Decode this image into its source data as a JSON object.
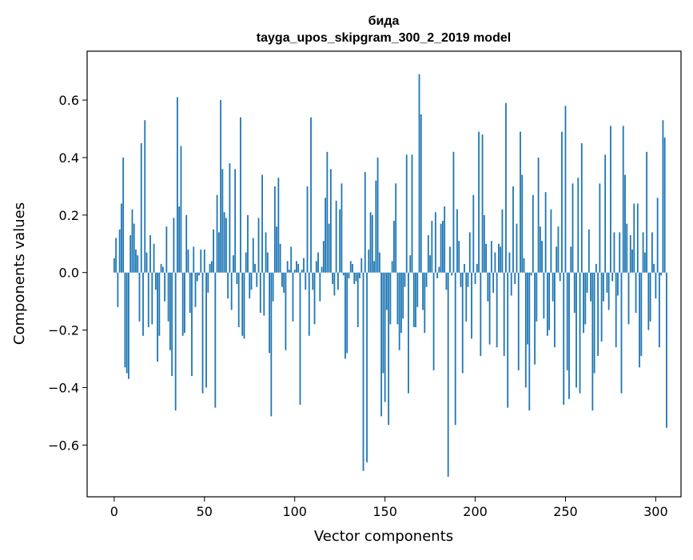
{
  "chart_data": {
    "type": "bar",
    "title": "бида",
    "subtitle": "tayga_upos_skipgram_300_2_2019 model",
    "xlabel": "Vector components",
    "ylabel": "Components values",
    "xlim": [
      -15,
      314
    ],
    "ylim": [
      -0.78,
      0.77
    ],
    "x_ticks": [
      0,
      50,
      100,
      150,
      200,
      250,
      300
    ],
    "y_ticks": [
      -0.6,
      -0.4,
      -0.2,
      0.0,
      0.2,
      0.4,
      0.6
    ],
    "y_tick_labels": [
      "−0.6",
      "−0.4",
      "−0.2",
      "0.0",
      "0.2",
      "0.4",
      "0.6"
    ],
    "bar_color": "#1f77b4",
    "grid": false,
    "values": [
      0.05,
      0.12,
      -0.12,
      0.15,
      0.24,
      0.4,
      -0.33,
      -0.35,
      -0.37,
      0.13,
      0.22,
      0.17,
      0.08,
      0.06,
      -0.17,
      0.45,
      -0.22,
      0.53,
      0.07,
      -0.19,
      0.13,
      -0.18,
      0.1,
      -0.06,
      -0.31,
      -0.22,
      0.03,
      0.02,
      -0.1,
      0.16,
      -0.17,
      -0.27,
      -0.36,
      0.19,
      -0.48,
      0.61,
      0.23,
      0.44,
      -0.22,
      -0.21,
      0.2,
      0.08,
      -0.14,
      -0.36,
      0.09,
      -0.12,
      -0.03,
      -0.01,
      0.08,
      -0.42,
      0.08,
      -0.4,
      -0.07,
      0.03,
      0.04,
      0.15,
      -0.47,
      0.27,
      0.14,
      0.6,
      0.36,
      0.21,
      0.19,
      -0.09,
      0.38,
      -0.13,
      0.06,
      0.36,
      -0.04,
      -0.19,
      0.54,
      -0.22,
      -0.23,
      0.07,
      0.2,
      -0.09,
      -0.06,
      0.12,
      0.03,
      -0.05,
      0.19,
      -0.14,
      0.34,
      -0.15,
      0.14,
      0.07,
      -0.28,
      -0.5,
      -0.1,
      0.3,
      0.16,
      0.33,
      0.1,
      -0.05,
      -0.07,
      -0.27,
      0.04,
      0.01,
      0.09,
      -0.17,
      0.01,
      0.04,
      0.03,
      -0.46,
      0.01,
      0.05,
      -0.06,
      0.3,
      -0.22,
      0.54,
      -0.06,
      -0.18,
      0.04,
      0.07,
      -0.1,
      0.02,
      0.11,
      0.26,
      0.42,
      0.17,
      0.36,
      -0.04,
      -0.08,
      0.25,
      -0.06,
      0.22,
      0.31,
      -0.01,
      -0.3,
      -0.28,
      -0.02,
      0.04,
      0.03,
      -0.04,
      -0.03,
      -0.19,
      -0.02,
      0.05,
      -0.69,
      0.35,
      -0.66,
      0.08,
      0.21,
      0.2,
      0.04,
      0.32,
      0.4,
      0.07,
      -0.5,
      -0.35,
      -0.45,
      -0.13,
      -0.53,
      -0.18,
      0.04,
      0.18,
      0.31,
      -0.18,
      -0.27,
      -0.21,
      -0.16,
      -0.05,
      0.41,
      -0.42,
      0.06,
      0.41,
      -0.19,
      -0.19,
      -0.12,
      0.69,
      0.55,
      -0.13,
      -0.21,
      -0.05,
      0.13,
      0.06,
      0.18,
      -0.34,
      0.21,
      -0.02,
      0.02,
      0.17,
      0.18,
      0.23,
      -0.06,
      -0.71,
      0.09,
      -0.01,
      0.42,
      -0.53,
      0.22,
      0.11,
      -0.05,
      -0.35,
      0.03,
      -0.17,
      -0.05,
      0.14,
      -0.23,
      0.27,
      -0.04,
      0.03,
      0.49,
      -0.29,
      0.48,
      0.2,
      0.1,
      -0.1,
      -0.25,
      0.11,
      -0.07,
      0.07,
      -0.26,
      0.1,
      0.09,
      0.22,
      -0.29,
      0.59,
      -0.47,
      0.07,
      -0.08,
      0.3,
      -0.04,
      0.17,
      -0.34,
      0.49,
      0.34,
      0.05,
      -0.4,
      -0.25,
      -0.48,
      -0.01,
      0.27,
      -0.32,
      -0.17,
      0.4,
      0.16,
      0.11,
      -0.16,
      0.28,
      -0.22,
      -0.2,
      0.22,
      -0.1,
      -0.26,
      0.09,
      0.16,
      -0.03,
      0.49,
      -0.46,
      0.58,
      -0.34,
      -0.44,
      0.09,
      0.31,
      -0.14,
      -0.4,
      0.33,
      -0.42,
      0.45,
      -0.21,
      -0.18,
      -0.07,
      0.15,
      -0.1,
      -0.48,
      -0.35,
      0.03,
      -0.29,
      0.31,
      -0.24,
      -0.1,
      0.41,
      -0.07,
      -0.13,
      0.51,
      -0.03,
      0.14,
      -0.26,
      -0.08,
      0.14,
      -0.42,
      0.51,
      0.34,
      0.17,
      -0.18,
      0.13,
      0.08,
      0.24,
      -0.14,
      0.24,
      -0.33,
      -0.29,
      0.14,
      0.07,
      0.42,
      -0.2,
      -0.17,
      0.14,
      0.03,
      -0.09,
      0.26,
      -0.26,
      -0.01,
      0.53,
      0.47,
      -0.54
    ]
  }
}
